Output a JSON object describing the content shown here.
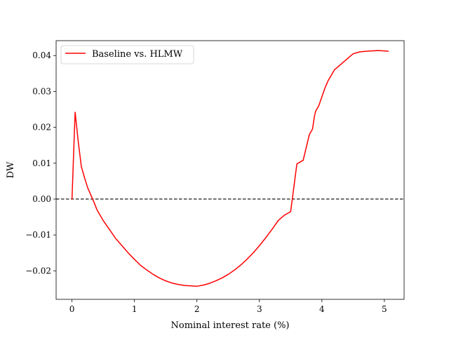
{
  "chart_data": {
    "type": "line",
    "title": "",
    "xlabel": "Nominal interest rate (%)",
    "ylabel": "DW",
    "xlim": [
      -0.254,
      5.316
    ],
    "ylim": [
      -0.02795,
      0.04415
    ],
    "xticks": [
      0,
      1,
      2,
      3,
      4,
      5
    ],
    "xtick_labels": [
      "0",
      "1",
      "2",
      "3",
      "4",
      "5"
    ],
    "yticks": [
      -0.02,
      -0.01,
      0.0,
      0.01,
      0.02,
      0.03,
      0.04
    ],
    "ytick_labels": [
      "−0.02",
      "−0.01",
      "0.00",
      "0.01",
      "0.02",
      "0.03",
      "0.04"
    ],
    "grid": false,
    "legend_position": "upper left",
    "reference_line": {
      "y": 0,
      "style": "dashed",
      "color": "#000000"
    },
    "series": [
      {
        "name": "Baseline vs. HLMW",
        "color": "#ff0000",
        "x": [
          0.0,
          0.05,
          0.1,
          0.15,
          0.2,
          0.25,
          0.3,
          0.35,
          0.4,
          0.45,
          0.5,
          0.6,
          0.7,
          0.8,
          0.9,
          1.0,
          1.1,
          1.2,
          1.3,
          1.4,
          1.5,
          1.6,
          1.7,
          1.8,
          1.9,
          2.0,
          2.1,
          2.2,
          2.3,
          2.4,
          2.5,
          2.6,
          2.7,
          2.8,
          2.9,
          3.0,
          3.1,
          3.2,
          3.3,
          3.4,
          3.5,
          3.6,
          3.7,
          3.8,
          3.85,
          3.88,
          3.9,
          3.95,
          4.0,
          4.05,
          4.1,
          4.15,
          4.2,
          4.3,
          4.4,
          4.5,
          4.6,
          4.7,
          4.8,
          4.9,
          5.0,
          5.06
        ],
        "y": [
          0.0,
          0.0242,
          0.016,
          0.009,
          0.006,
          0.0032,
          0.0012,
          -0.0008,
          -0.003,
          -0.0045,
          -0.006,
          -0.0085,
          -0.011,
          -0.013,
          -0.015,
          -0.0168,
          -0.0185,
          -0.0198,
          -0.021,
          -0.022,
          -0.0228,
          -0.0234,
          -0.0238,
          -0.0241,
          -0.0242,
          -0.0243,
          -0.024,
          -0.0235,
          -0.0228,
          -0.022,
          -0.021,
          -0.0198,
          -0.0184,
          -0.0168,
          -0.015,
          -0.013,
          -0.0108,
          -0.0085,
          -0.006,
          -0.0045,
          -0.0035,
          0.0098,
          0.0108,
          0.018,
          0.0195,
          0.023,
          0.0245,
          0.026,
          0.0285,
          0.031,
          0.033,
          0.0345,
          0.036,
          0.0375,
          0.039,
          0.0405,
          0.041,
          0.0412,
          0.0413,
          0.0414,
          0.0413,
          0.0412
        ]
      }
    ]
  }
}
